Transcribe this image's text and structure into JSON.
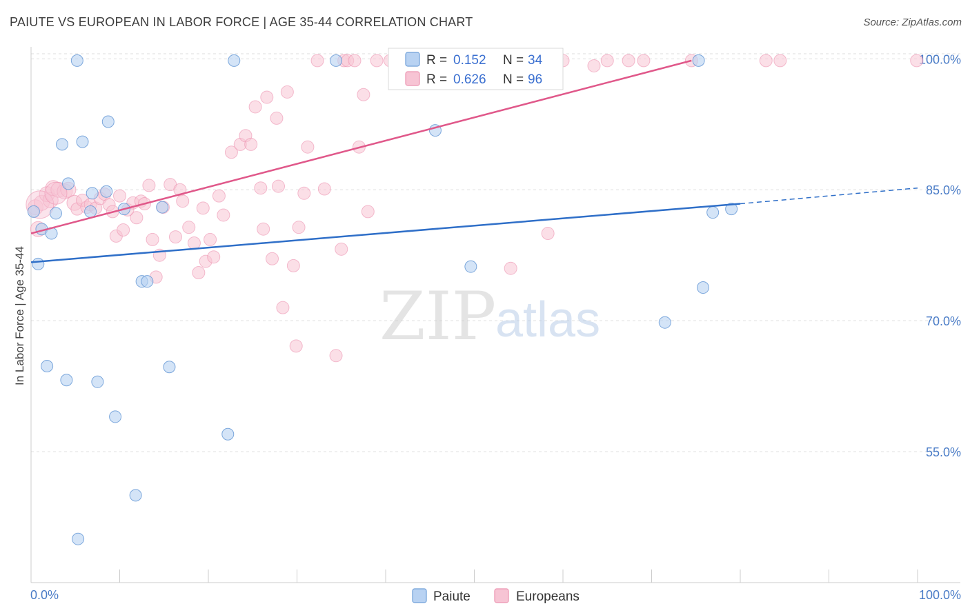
{
  "title": "PAIUTE VS EUROPEAN IN LABOR FORCE | AGE 35-44 CORRELATION CHART",
  "source": "Source: ZipAtlas.com",
  "watermark": {
    "zip": "ZIP",
    "atlas": "atlas"
  },
  "colors": {
    "paiute_fill": "#b8d2f2",
    "paiute_stroke": "#6f9fd8",
    "paiute_line": "#2f6fc8",
    "europeans_fill": "#f7c4d4",
    "europeans_stroke": "#ec93b0",
    "europeans_line": "#e0588a",
    "grid": "#dddddd",
    "axis_text": "#4a7cc7"
  },
  "legend": {
    "r_label": "R =",
    "n_label": "N =",
    "paiute_r": "0.152",
    "paiute_n": "34",
    "europeans_r": "0.626",
    "europeans_n": "96"
  },
  "bottom_legend": {
    "paiute": "Paiute",
    "europeans": "Europeans"
  },
  "chart_data": {
    "type": "scatter",
    "title": "PAIUTE VS EUROPEAN IN LABOR FORCE | AGE 35-44 CORRELATION CHART",
    "xlabel": "",
    "ylabel": "In Labor Force | Age 35-44",
    "xlim": [
      0,
      100
    ],
    "ylim": [
      40,
      102
    ],
    "x_tick_labels": [
      "0.0%",
      "100.0%"
    ],
    "y_ticks": [
      55,
      70,
      85,
      100
    ],
    "y_tick_labels": [
      "55.0%",
      "70.0%",
      "85.0%",
      "100.0%"
    ],
    "grid": true,
    "series": [
      {
        "name": "Paiute",
        "R": 0.152,
        "N": 34,
        "points": [
          [
            0.3,
            82.5
          ],
          [
            0.8,
            76.5
          ],
          [
            1.2,
            80.5
          ],
          [
            1.8,
            64.8
          ],
          [
            2.3,
            80.0
          ],
          [
            2.8,
            82.3
          ],
          [
            3.5,
            90.2
          ],
          [
            4.0,
            63.2
          ],
          [
            4.2,
            85.7
          ],
          [
            5.2,
            99.8
          ],
          [
            5.3,
            45.0
          ],
          [
            5.8,
            90.5
          ],
          [
            6.7,
            82.5
          ],
          [
            6.9,
            84.6
          ],
          [
            7.5,
            63.0
          ],
          [
            8.5,
            84.8
          ],
          [
            8.7,
            92.8
          ],
          [
            9.5,
            59.0
          ],
          [
            10.5,
            82.8
          ],
          [
            11.8,
            50.0
          ],
          [
            12.5,
            74.5
          ],
          [
            13.1,
            74.5
          ],
          [
            14.8,
            83.0
          ],
          [
            15.6,
            64.7
          ],
          [
            22.2,
            57.0
          ],
          [
            22.9,
            99.8
          ],
          [
            34.4,
            99.8
          ],
          [
            45.6,
            91.8
          ],
          [
            49.6,
            76.2
          ],
          [
            71.5,
            69.8
          ],
          [
            75.3,
            99.8
          ],
          [
            75.8,
            73.8
          ],
          [
            76.9,
            82.4
          ],
          [
            79.0,
            82.8
          ]
        ],
        "trend": {
          "x": [
            0,
            80
          ],
          "y": [
            76.7,
            83.4
          ],
          "dashed_to": [
            100,
            85.2
          ]
        }
      },
      {
        "name": "Europeans",
        "R": 0.626,
        "N": 96,
        "points": [
          [
            0.5,
            83.0
          ],
          [
            0.8,
            80.5
          ],
          [
            1.2,
            83.5
          ],
          [
            1.8,
            84.5
          ],
          [
            2.2,
            83.8
          ],
          [
            2.5,
            85.2
          ],
          [
            3.1,
            85.0
          ],
          [
            3.8,
            84.8
          ],
          [
            4.2,
            85.0
          ],
          [
            4.9,
            83.5
          ],
          [
            5.2,
            82.8
          ],
          [
            5.8,
            83.8
          ],
          [
            6.3,
            83.0
          ],
          [
            6.7,
            83.3
          ],
          [
            7.3,
            82.9
          ],
          [
            7.8,
            84.0
          ],
          [
            8.3,
            84.5
          ],
          [
            8.8,
            83.3
          ],
          [
            9.2,
            82.5
          ],
          [
            9.6,
            79.7
          ],
          [
            10.0,
            84.3
          ],
          [
            10.4,
            80.4
          ],
          [
            10.9,
            82.7
          ],
          [
            11.5,
            83.5
          ],
          [
            11.9,
            81.8
          ],
          [
            12.4,
            83.7
          ],
          [
            12.8,
            83.4
          ],
          [
            13.3,
            85.5
          ],
          [
            13.7,
            79.3
          ],
          [
            14.1,
            75.0
          ],
          [
            14.5,
            77.5
          ],
          [
            14.9,
            83.0
          ],
          [
            15.7,
            85.6
          ],
          [
            16.3,
            79.6
          ],
          [
            16.8,
            85.0
          ],
          [
            17.1,
            83.7
          ],
          [
            17.8,
            80.7
          ],
          [
            18.4,
            78.9
          ],
          [
            18.9,
            75.5
          ],
          [
            19.4,
            82.9
          ],
          [
            19.7,
            76.8
          ],
          [
            20.2,
            79.3
          ],
          [
            20.6,
            77.3
          ],
          [
            21.2,
            84.3
          ],
          [
            21.7,
            82.1
          ],
          [
            22.6,
            89.3
          ],
          [
            23.6,
            90.2
          ],
          [
            24.2,
            91.2
          ],
          [
            24.8,
            90.2
          ],
          [
            25.3,
            94.5
          ],
          [
            25.9,
            85.2
          ],
          [
            26.2,
            80.5
          ],
          [
            26.6,
            95.6
          ],
          [
            27.2,
            77.1
          ],
          [
            27.7,
            93.2
          ],
          [
            27.9,
            85.4
          ],
          [
            28.4,
            71.5
          ],
          [
            28.9,
            96.2
          ],
          [
            29.6,
            76.3
          ],
          [
            29.9,
            67.1
          ],
          [
            30.2,
            80.7
          ],
          [
            30.8,
            84.6
          ],
          [
            31.2,
            89.9
          ],
          [
            32.3,
            99.8
          ],
          [
            33.1,
            85.1
          ],
          [
            34.4,
            66.0
          ],
          [
            35.0,
            78.2
          ],
          [
            35.3,
            99.8
          ],
          [
            35.7,
            99.8
          ],
          [
            36.5,
            99.8
          ],
          [
            37.0,
            89.9
          ],
          [
            37.5,
            95.9
          ],
          [
            38.0,
            82.5
          ],
          [
            39.0,
            99.8
          ],
          [
            40.5,
            99.8
          ],
          [
            41.5,
            99.8
          ],
          [
            42.5,
            99.8
          ],
          [
            43.5,
            99.8
          ],
          [
            44.5,
            99.8
          ],
          [
            46.0,
            99.8
          ],
          [
            47.4,
            99.8
          ],
          [
            48.5,
            99.8
          ],
          [
            50.5,
            99.8
          ],
          [
            52.0,
            99.8
          ],
          [
            54.1,
            76.0
          ],
          [
            55.0,
            99.8
          ],
          [
            58.3,
            80.0
          ],
          [
            60.0,
            99.8
          ],
          [
            63.5,
            99.2
          ],
          [
            65.0,
            99.8
          ],
          [
            67.4,
            99.8
          ],
          [
            69.1,
            99.8
          ],
          [
            74.5,
            99.8
          ],
          [
            82.9,
            99.8
          ],
          [
            84.5,
            99.8
          ],
          [
            99.9,
            99.8
          ]
        ],
        "trend": {
          "x": [
            0,
            74.5
          ],
          "y": [
            80.0,
            99.8
          ]
        }
      }
    ]
  }
}
